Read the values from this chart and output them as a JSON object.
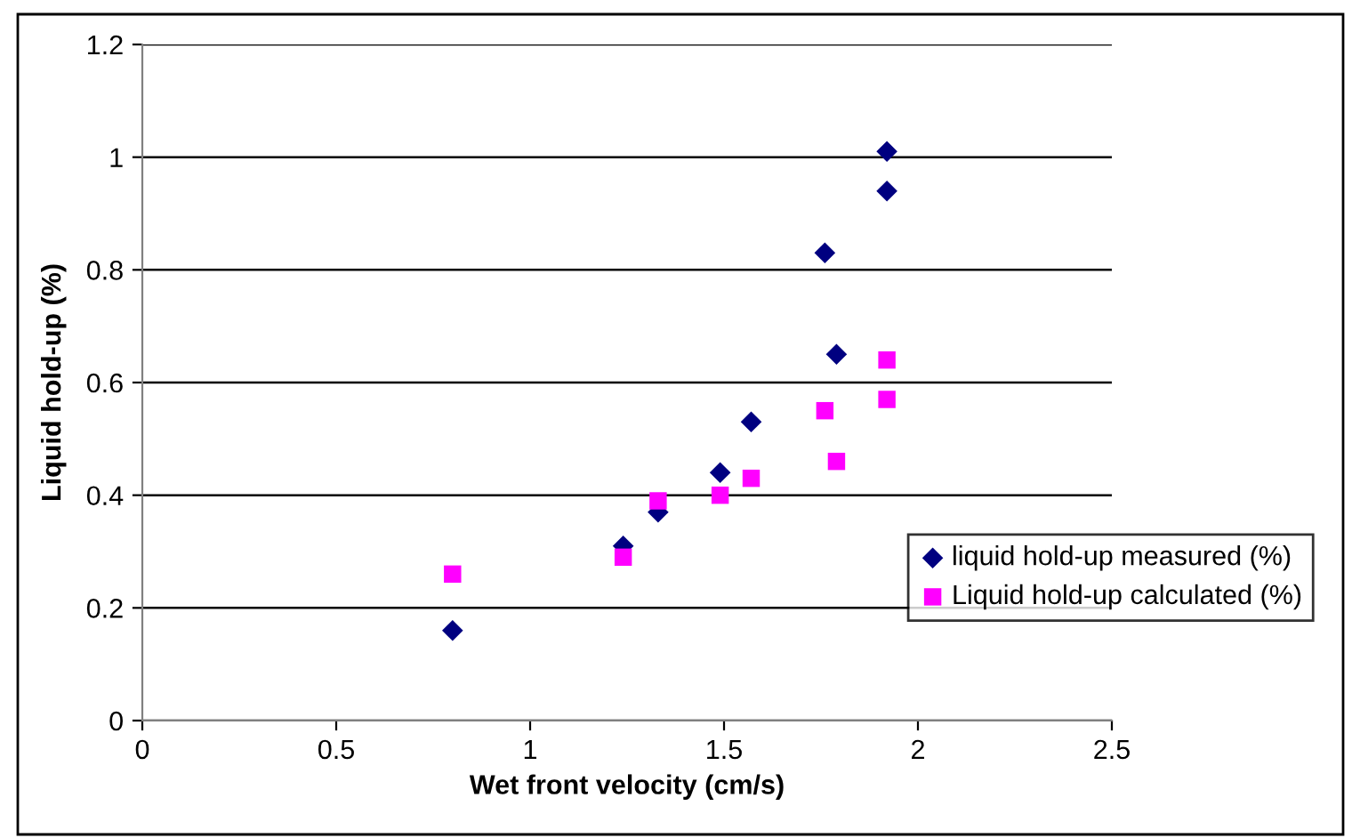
{
  "chart_data": {
    "type": "scatter",
    "xlabel": "Wet front velocity (cm/s)",
    "ylabel": "Liquid hold-up (%)",
    "xlim": [
      0,
      2.5
    ],
    "xticks": [
      0,
      0.5,
      1,
      1.5,
      2,
      2.5
    ],
    "ylim": [
      0,
      1.2
    ],
    "yticks": [
      0,
      0.2,
      0.4,
      0.6,
      0.8,
      1,
      1.2
    ],
    "grid": "y",
    "legend": "right",
    "series": [
      {
        "name": "liquid hold-up measured (%)",
        "color": "#000080",
        "marker": "diamond",
        "x": [
          0.8,
          1.24,
          1.33,
          1.49,
          1.57,
          1.76,
          1.79,
          1.92,
          1.92
        ],
        "values": [
          0.16,
          0.31,
          0.37,
          0.44,
          0.53,
          0.83,
          0.65,
          1.01,
          0.94
        ]
      },
      {
        "name": "Liquid hold-up calculated (%)",
        "color": "#ff00ff",
        "marker": "square",
        "x": [
          0.8,
          1.24,
          1.33,
          1.49,
          1.57,
          1.76,
          1.79,
          1.92,
          1.92
        ],
        "values": [
          0.26,
          0.29,
          0.39,
          0.4,
          0.43,
          0.55,
          0.46,
          0.64,
          0.57
        ]
      }
    ]
  }
}
